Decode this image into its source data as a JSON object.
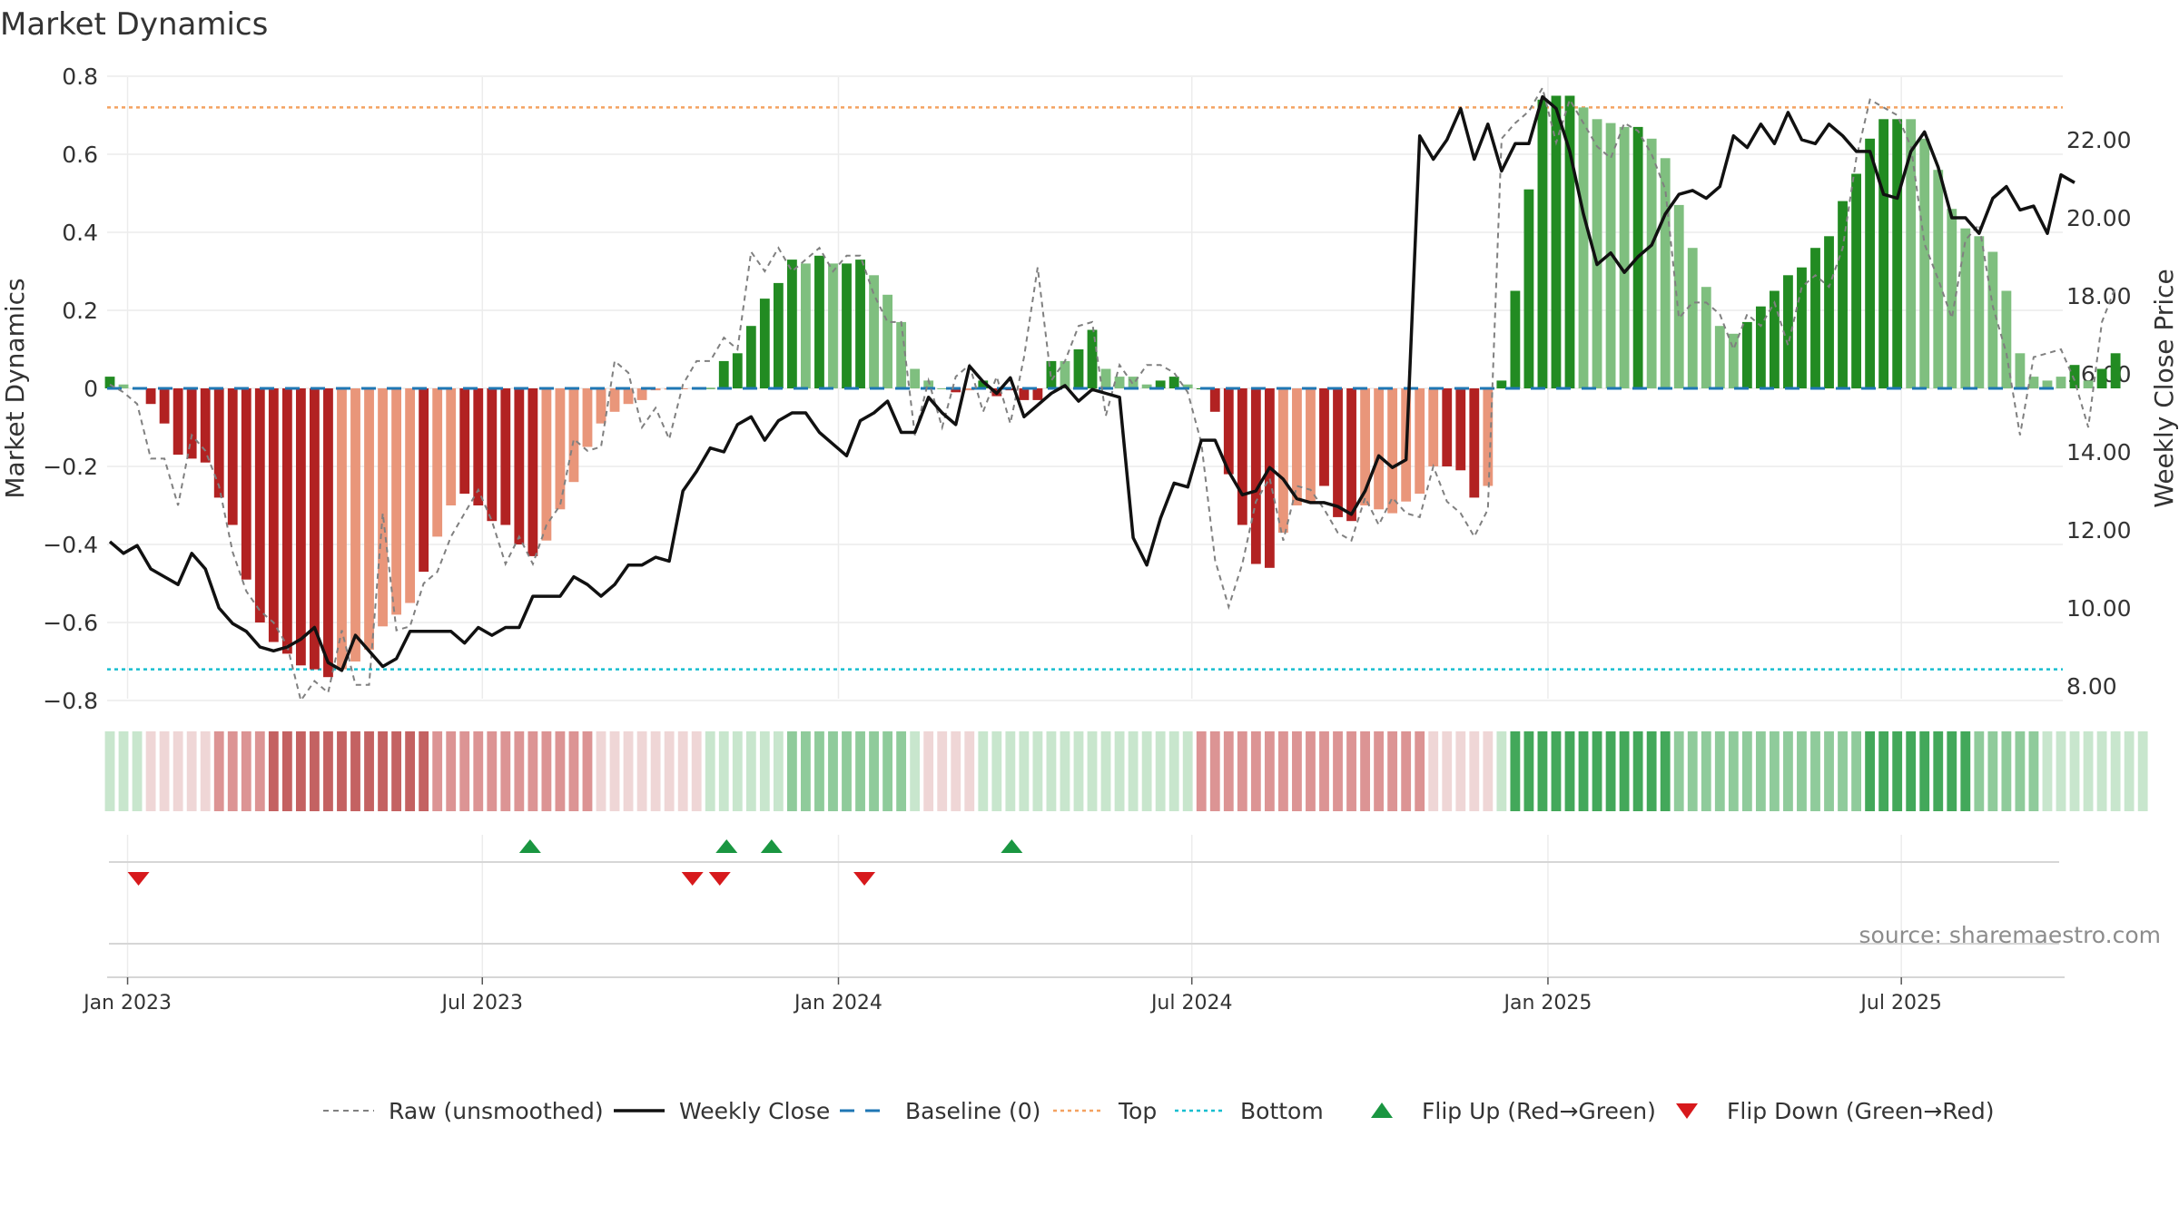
{
  "title": "Market Dynamics",
  "watermark": "source: sharemaestro.com",
  "colors": {
    "strong_green": "#228b22",
    "light_green": "#7fbf7f",
    "strong_red": "#b22222",
    "light_red": "#e9967a",
    "raw_line": "#808080",
    "close_line": "#111111",
    "baseline": "#1f77b4",
    "top_line": "#f4a261",
    "bottom_line": "#17becf",
    "flip_up": "#1a9641",
    "flip_down": "#d7191c"
  },
  "chart_data": {
    "type": "bar+line",
    "ylabel_left": "Market Dynamics",
    "ylabel_right": "Weekly Close Price",
    "ylim_left": [
      -0.82,
      0.8
    ],
    "ylim_right": [
      7.25,
      23.6
    ],
    "yticks_left": [
      "0.8",
      "0.6",
      "0.4",
      "0.2",
      "0",
      "−0.2",
      "−0.4",
      "−0.6",
      "−0.8"
    ],
    "yticks_right": [
      "22.00",
      "20.00",
      "18.00",
      "16.00",
      "14.00",
      "12.00",
      "10.00",
      "8.00"
    ],
    "x_ticks": [
      {
        "label": "Jan 2023",
        "week": 1.3
      },
      {
        "label": "Jul 2023",
        "week": 27.3
      },
      {
        "label": "Jan 2024",
        "week": 53.4
      },
      {
        "label": "Jul 2024",
        "week": 79.3
      },
      {
        "label": "Jan 2025",
        "week": 105.4
      },
      {
        "label": "Jul 2025",
        "week": 131.3
      }
    ],
    "top_level": 0.72,
    "bottom_level": -0.72,
    "strength_levels": [
      "strong",
      "light"
    ],
    "weeks": 144,
    "dynamics": [
      0.03,
      0.01,
      0.0,
      -0.04,
      -0.09,
      -0.17,
      -0.18,
      -0.19,
      -0.28,
      -0.35,
      -0.49,
      -0.6,
      -0.65,
      -0.68,
      -0.71,
      -0.72,
      -0.74,
      -0.72,
      -0.7,
      -0.67,
      -0.61,
      -0.58,
      -0.55,
      -0.47,
      -0.38,
      -0.3,
      -0.27,
      -0.3,
      -0.34,
      -0.35,
      -0.4,
      -0.43,
      -0.39,
      -0.31,
      -0.24,
      -0.15,
      -0.09,
      -0.06,
      -0.04,
      -0.03,
      -0.005,
      -0.003,
      -0.002,
      -0.001,
      0.001,
      0.07,
      0.09,
      0.16,
      0.23,
      0.27,
      0.33,
      0.32,
      0.34,
      0.32,
      0.32,
      0.33,
      0.29,
      0.24,
      0.17,
      0.05,
      0.02,
      0.0,
      -0.01,
      -0.005,
      0.02,
      -0.02,
      -0.005,
      -0.03,
      -0.03,
      0.07,
      0.07,
      0.1,
      0.15,
      0.05,
      0.03,
      0.03,
      0.01,
      0.02,
      0.03,
      0.01,
      0.0,
      -0.06,
      -0.22,
      -0.35,
      -0.45,
      -0.46,
      -0.37,
      -0.3,
      -0.29,
      -0.25,
      -0.33,
      -0.34,
      -0.3,
      -0.31,
      -0.32,
      -0.29,
      -0.27,
      -0.2,
      -0.2,
      -0.21,
      -0.28,
      -0.25,
      0.02,
      0.25,
      0.51,
      0.74,
      0.75,
      0.75,
      0.72,
      0.69,
      0.68,
      0.67,
      0.67,
      0.64,
      0.59,
      0.47,
      0.36,
      0.26,
      0.16,
      0.14,
      0.17,
      0.21,
      0.25,
      0.29,
      0.31,
      0.36,
      0.39,
      0.48,
      0.55,
      0.64,
      0.69,
      0.69,
      0.69,
      0.64,
      0.56,
      0.46,
      0.41,
      0.39,
      0.35,
      0.25,
      0.09,
      0.03,
      0.02,
      0.03,
      0.06,
      0.02,
      0.05,
      0.09
    ],
    "strength": [
      "strong",
      "light",
      "light",
      "strong",
      "strong",
      "strong",
      "strong",
      "strong",
      "strong",
      "strong",
      "strong",
      "strong",
      "strong",
      "strong",
      "strong",
      "strong",
      "strong",
      "light",
      "light",
      "light",
      "light",
      "light",
      "light",
      "strong",
      "light",
      "light",
      "strong",
      "strong",
      "strong",
      "strong",
      "strong",
      "strong",
      "light",
      "light",
      "light",
      "light",
      "light",
      "light",
      "light",
      "light",
      "light",
      "light",
      "light",
      "light",
      "strong",
      "strong",
      "strong",
      "strong",
      "strong",
      "strong",
      "strong",
      "light",
      "strong",
      "light",
      "strong",
      "strong",
      "light",
      "light",
      "light",
      "light",
      "light",
      "light",
      "strong",
      "light",
      "strong",
      "strong",
      "strong",
      "strong",
      "strong",
      "strong",
      "light",
      "strong",
      "strong",
      "light",
      "light",
      "light",
      "light",
      "strong",
      "strong",
      "light",
      "strong",
      "strong",
      "strong",
      "strong",
      "strong",
      "strong",
      "light",
      "light",
      "light",
      "strong",
      "strong",
      "strong",
      "light",
      "light",
      "light",
      "light",
      "light",
      "light",
      "strong",
      "strong",
      "strong",
      "light",
      "strong",
      "strong",
      "strong",
      "strong",
      "strong",
      "strong",
      "light",
      "light",
      "light",
      "light",
      "strong",
      "light",
      "light",
      "light",
      "light",
      "light",
      "light",
      "light",
      "strong",
      "strong",
      "strong",
      "strong",
      "strong",
      "strong",
      "strong",
      "strong",
      "strong",
      "strong",
      "strong",
      "strong",
      "light",
      "light",
      "light",
      "light",
      "light",
      "light",
      "light",
      "light",
      "light",
      "light",
      "light",
      "light",
      "strong",
      "light",
      "strong",
      "strong"
    ],
    "raw": [
      0.01,
      -0.01,
      -0.04,
      -0.18,
      -0.18,
      -0.3,
      -0.12,
      -0.16,
      -0.25,
      -0.42,
      -0.52,
      -0.57,
      -0.6,
      -0.66,
      -0.8,
      -0.75,
      -0.78,
      -0.62,
      -0.76,
      -0.76,
      -0.32,
      -0.62,
      -0.61,
      -0.5,
      -0.47,
      -0.38,
      -0.32,
      -0.26,
      -0.34,
      -0.45,
      -0.38,
      -0.45,
      -0.35,
      -0.3,
      -0.13,
      -0.16,
      -0.15,
      0.07,
      0.04,
      -0.1,
      -0.05,
      -0.13,
      0.01,
      0.07,
      0.07,
      0.13,
      0.1,
      0.35,
      0.3,
      0.36,
      0.3,
      0.33,
      0.36,
      0.3,
      0.34,
      0.34,
      0.24,
      0.17,
      0.17,
      -0.12,
      0.02,
      -0.1,
      0.03,
      0.06,
      -0.06,
      0.03,
      -0.09,
      0.08,
      0.31,
      0.02,
      0.07,
      0.16,
      0.17,
      -0.07,
      0.06,
      0.01,
      0.06,
      0.06,
      0.04,
      -0.01,
      -0.14,
      -0.44,
      -0.56,
      -0.45,
      -0.29,
      -0.23,
      -0.39,
      -0.25,
      -0.26,
      -0.31,
      -0.37,
      -0.39,
      -0.28,
      -0.35,
      -0.28,
      -0.32,
      -0.33,
      -0.2,
      -0.29,
      -0.32,
      -0.38,
      -0.31,
      0.64,
      0.68,
      0.71,
      0.77,
      0.63,
      0.74,
      0.68,
      0.62,
      0.59,
      0.68,
      0.66,
      0.6,
      0.51,
      0.18,
      0.22,
      0.22,
      0.19,
      0.1,
      0.19,
      0.16,
      0.22,
      0.11,
      0.26,
      0.29,
      0.26,
      0.36,
      0.59,
      0.74,
      0.72,
      0.7,
      0.62,
      0.37,
      0.28,
      0.18,
      0.38,
      0.42,
      0.21,
      0.09,
      -0.12,
      0.08,
      0.09,
      0.1,
      0.02,
      -0.1,
      0.17,
      0.26
    ],
    "close": [
      11.7,
      11.4,
      11.6,
      11.0,
      10.8,
      10.6,
      11.4,
      11.0,
      10.0,
      9.6,
      9.4,
      9.0,
      8.9,
      9.0,
      9.2,
      9.5,
      8.6,
      8.4,
      9.3,
      8.9,
      8.5,
      8.7,
      9.4,
      9.4,
      9.4,
      9.4,
      9.1,
      9.5,
      9.3,
      9.5,
      9.5,
      10.3,
      10.3,
      10.3,
      10.8,
      10.6,
      10.3,
      10.6,
      11.1,
      11.1,
      11.3,
      11.2,
      13.0,
      13.5,
      14.1,
      14.0,
      14.7,
      14.9,
      14.3,
      14.8,
      15.0,
      15.0,
      14.5,
      14.2,
      13.9,
      14.8,
      15.0,
      15.3,
      14.5,
      14.5,
      15.4,
      15.0,
      14.7,
      16.2,
      15.8,
      15.5,
      15.9,
      14.9,
      15.2,
      15.5,
      15.7,
      15.3,
      15.6,
      15.5,
      15.4,
      11.8,
      11.1,
      12.3,
      13.2,
      13.1,
      14.3,
      14.3,
      13.5,
      12.9,
      13.0,
      13.6,
      13.3,
      12.8,
      12.7,
      12.7,
      12.6,
      12.4,
      13.0,
      13.9,
      13.6,
      13.8,
      22.1,
      21.5,
      22.0,
      22.8,
      21.5,
      22.4,
      21.2,
      21.9,
      21.9,
      23.1,
      22.8,
      21.7,
      20.1,
      18.8,
      19.1,
      18.6,
      19.0,
      19.3,
      20.1,
      20.6,
      20.7,
      20.5,
      20.8,
      22.1,
      21.8,
      22.4,
      21.9,
      22.7,
      22.0,
      21.9,
      22.4,
      22.1,
      21.7,
      21.7,
      20.6,
      20.5,
      21.7,
      22.2,
      21.3,
      20.0,
      20.0,
      19.6,
      20.5,
      20.8,
      20.2,
      20.3,
      19.6,
      21.1,
      20.9
    ],
    "band_levels": [
      1,
      1,
      1,
      -1,
      -1,
      -1,
      -1,
      -1,
      -2,
      -2,
      -2,
      -2,
      -3,
      -3,
      -3,
      -3,
      -3,
      -3,
      -3,
      -3,
      -3,
      -3,
      -3,
      -3,
      -2,
      -2,
      -2,
      -2,
      -2,
      -2,
      -2,
      -2,
      -2,
      -2,
      -2,
      -2,
      -1,
      -1,
      -1,
      -1,
      -1,
      -1,
      -1,
      -1,
      1,
      1,
      1,
      1,
      1,
      1,
      2,
      2,
      2,
      2,
      2,
      2,
      2,
      2,
      2,
      1,
      -1,
      -1,
      -1,
      -1,
      1,
      1,
      1,
      1,
      1,
      1,
      1,
      1,
      1,
      1,
      1,
      1,
      1,
      1,
      1,
      1,
      -2,
      -2,
      -2,
      -2,
      -2,
      -2,
      -2,
      -2,
      -2,
      -2,
      -2,
      -2,
      -2,
      -2,
      -2,
      -2,
      -2,
      -1,
      -1,
      -1,
      -1,
      -1,
      1,
      3,
      3,
      3,
      3,
      3,
      3,
      3,
      3,
      3,
      3,
      3,
      3,
      2,
      2,
      2,
      2,
      2,
      2,
      2,
      2,
      2,
      2,
      2,
      2,
      2,
      2,
      3,
      3,
      3,
      3,
      3,
      3,
      3,
      3,
      2,
      2,
      2,
      2,
      2,
      1,
      1,
      1,
      1,
      1,
      1,
      1,
      1
    ],
    "flip_up_weeks": [
      30.8,
      45.2,
      48.5,
      66.1
    ],
    "flip_down_weeks": [
      2.1,
      42.7,
      44.7,
      55.3
    ],
    "legend": [
      {
        "label": "Raw (unsmoothed)",
        "style": "dashed-gray"
      },
      {
        "label": "Weekly Close",
        "style": "solid-black"
      },
      {
        "label": "Baseline (0)",
        "style": "dashed-blue"
      },
      {
        "label": "Top",
        "style": "dotted-orange"
      },
      {
        "label": "Bottom",
        "style": "dotted-cyan"
      },
      {
        "label": "Flip Up (Red→Green)",
        "style": "triangle-up-green"
      },
      {
        "label": "Flip Down (Green→Red)",
        "style": "triangle-down-red"
      }
    ]
  }
}
